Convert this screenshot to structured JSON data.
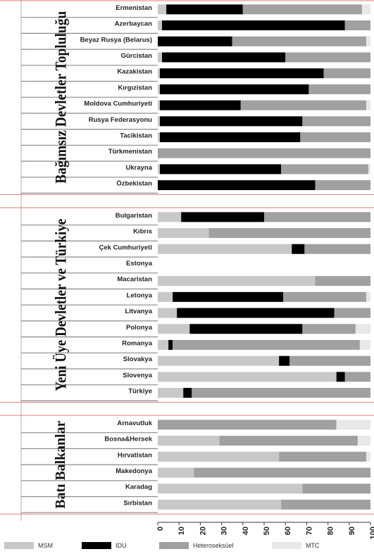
{
  "chart_data": {
    "type": "bar",
    "orientation": "horizontal",
    "stacked": true,
    "xlim": [
      0,
      100
    ],
    "xticks": [
      "0",
      "10",
      "20",
      "30",
      "40",
      "50",
      "60",
      "70",
      "80",
      "90",
      "100"
    ],
    "series_order": [
      "MSM",
      "IDU",
      "Heteroseksüel",
      "MTC"
    ],
    "colors": {
      "MSM": "#c8c8c8",
      "IDU": "#000000",
      "Heteroseksüel": "#a0a0a0",
      "MTC": "#e8e8e8"
    },
    "legend": [
      {
        "name": "MSM",
        "color": "#c8c8c8"
      },
      {
        "name": "IDU",
        "color": "#000000"
      },
      {
        "name": "Heteroseksüel",
        "color": "#a0a0a0"
      },
      {
        "name": "MTC",
        "color": "#e8e8e8"
      }
    ],
    "groups": [
      {
        "name": "Bağımsız Devletler Topluluğu",
        "rows": [
          {
            "name": "Ermenistan",
            "values": [
              4,
              36,
              56,
              4
            ]
          },
          {
            "name": "Azerbaycan",
            "values": [
              2,
              86,
              12,
              0
            ]
          },
          {
            "name": "Beyaz Rusya (Belarus)",
            "values": [
              0,
              35,
              63,
              2
            ]
          },
          {
            "name": "Gürcistan",
            "values": [
              2,
              58,
              40,
              0
            ]
          },
          {
            "name": "Kazakistan",
            "values": [
              1,
              77,
              22,
              0
            ]
          },
          {
            "name": "Kırgızistan",
            "values": [
              1,
              70,
              29,
              0
            ]
          },
          {
            "name": "Moldova Cumhuriyeti",
            "values": [
              1,
              38,
              59,
              2
            ]
          },
          {
            "name": "Rusya Federasyonu",
            "values": [
              1,
              67,
              32,
              0
            ]
          },
          {
            "name": "Tacikistan",
            "values": [
              1,
              66,
              33,
              0
            ]
          },
          {
            "name": "Türkmenistan",
            "values": [
              0,
              0,
              100,
              0
            ]
          },
          {
            "name": "Ukrayna",
            "values": [
              1,
              57,
              41,
              1
            ]
          },
          {
            "name": "Özbekistan",
            "values": [
              0,
              74,
              26,
              0
            ]
          }
        ]
      },
      {
        "name": "Yeni Üye Devletler ve Türkiye",
        "rows": [
          {
            "name": "Bulgaristan",
            "values": [
              11,
              39,
              50,
              0
            ]
          },
          {
            "name": "Kıbrıs",
            "values": [
              24,
              0,
              76,
              0
            ]
          },
          {
            "name": "Çek Cumhuriyeti",
            "values": [
              63,
              6,
              31,
              0
            ]
          },
          {
            "name": "Estonya",
            "values": [
              0,
              0,
              0,
              0
            ]
          },
          {
            "name": "Macaristan",
            "values": [
              74,
              0,
              26,
              0
            ]
          },
          {
            "name": "Letonya",
            "values": [
              7,
              52,
              39,
              2
            ]
          },
          {
            "name": "Litvanya",
            "values": [
              9,
              74,
              17,
              0
            ]
          },
          {
            "name": "Polonya",
            "values": [
              15,
              53,
              25,
              7
            ]
          },
          {
            "name": "Romanya",
            "values": [
              5,
              2,
              88,
              5
            ]
          },
          {
            "name": "Slovakya",
            "values": [
              57,
              5,
              38,
              0
            ]
          },
          {
            "name": "Slovenya",
            "values": [
              84,
              4,
              12,
              0
            ]
          },
          {
            "name": "Türkiye",
            "values": [
              12,
              4,
              84,
              0
            ]
          }
        ]
      },
      {
        "name": "Batı Balkanlar",
        "rows": [
          {
            "name": "Arnavutluk",
            "values": [
              0,
              0,
              84,
              16
            ]
          },
          {
            "name": "Bosna&Hersek",
            "values": [
              29,
              0,
              65,
              6
            ]
          },
          {
            "name": "Hırvatistan",
            "values": [
              57,
              0,
              41,
              2
            ]
          },
          {
            "name": "Makedonya",
            "values": [
              17,
              0,
              83,
              0
            ]
          },
          {
            "name": "Karadag",
            "values": [
              68,
              0,
              32,
              0
            ]
          },
          {
            "name": "Sırbistan",
            "values": [
              58,
              0,
              42,
              0
            ]
          }
        ]
      }
    ]
  }
}
